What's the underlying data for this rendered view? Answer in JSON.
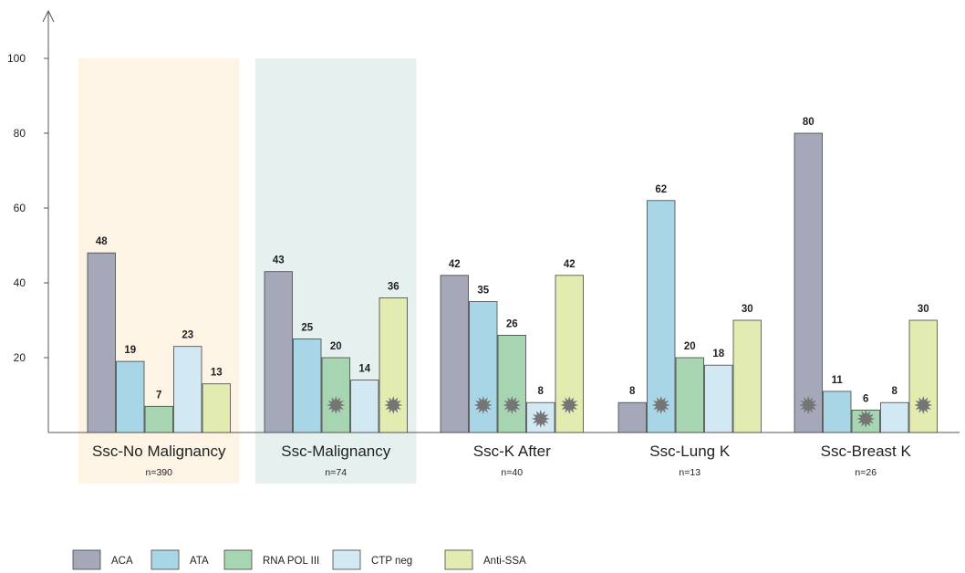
{
  "chart_data": {
    "type": "bar",
    "title": "",
    "xlabel": "",
    "ylabel": "",
    "ylim": [
      0,
      100
    ],
    "yticks": [
      20,
      40,
      60,
      80,
      100
    ],
    "grid": false,
    "legend_position": "bottom-left",
    "groups": [
      {
        "label": "Ssc-No Malignancy",
        "n": "n=390",
        "highlight_color": "#fdf4e6"
      },
      {
        "label": "Ssc-Malignancy",
        "n": "n=74",
        "highlight_color": "#e6f1ef"
      },
      {
        "label": "Ssc-K After",
        "n": "n=40",
        "highlight_color": ""
      },
      {
        "label": "Ssc-Lung K",
        "n": "n=13",
        "highlight_color": ""
      },
      {
        "label": "Ssc-Breast K",
        "n": "n=26",
        "highlight_color": ""
      }
    ],
    "series": [
      {
        "name": "ACA",
        "color": "#a4a8b8",
        "values": [
          48,
          43,
          42,
          8,
          80
        ],
        "marked": [
          false,
          false,
          false,
          false,
          true
        ]
      },
      {
        "name": "ATA",
        "color": "#a9d6e6",
        "values": [
          19,
          25,
          35,
          62,
          11
        ],
        "marked": [
          false,
          false,
          true,
          true,
          false
        ]
      },
      {
        "name": "RNA POL III",
        "color": "#a7d4b1",
        "values": [
          7,
          20,
          26,
          20,
          6
        ],
        "marked": [
          false,
          true,
          true,
          false,
          true
        ]
      },
      {
        "name": "CTP neg",
        "color": "#d2e8f2",
        "values": [
          23,
          14,
          8,
          18,
          8
        ],
        "marked": [
          false,
          false,
          true,
          false,
          false
        ]
      },
      {
        "name": "Anti-SSA",
        "color": "#e3ecb0",
        "values": [
          13,
          36,
          42,
          30,
          30
        ],
        "marked": [
          false,
          true,
          true,
          false,
          true
        ]
      }
    ]
  }
}
